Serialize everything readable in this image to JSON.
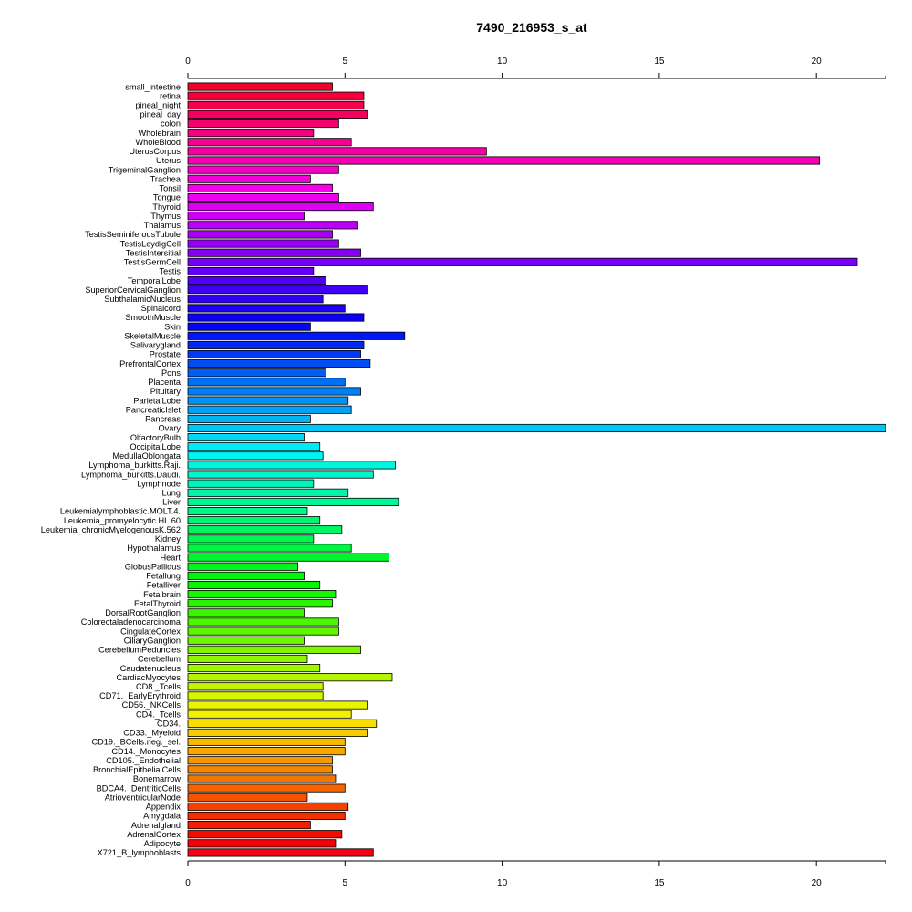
{
  "chart_data": {
    "type": "bar",
    "orientation": "horizontal",
    "title": "7490_216953_s_at",
    "xlabel": "",
    "ylabel": "",
    "xlim": [
      0,
      22.2
    ],
    "xticks": [
      0,
      5,
      10,
      15,
      20
    ],
    "grid": false,
    "legend": "none",
    "categories": [
      "small_intestine",
      "retina",
      "pineal_night",
      "pineal_day",
      "colon",
      "Wholebrain",
      "WholeBlood",
      "UterusCorpus",
      "Uterus",
      "TrigeminalGanglion",
      "Trachea",
      "Tonsil",
      "Tongue",
      "Thyroid",
      "Thymus",
      "Thalamus",
      "TestisSeminiferousTubule",
      "TestisLeydigCell",
      "TestisIntersitial",
      "TestisGermCell",
      "Testis",
      "TemporalLobe",
      "SuperiorCervicalGanglion",
      "SubthalamicNucleus",
      "Spinalcord",
      "SmoothMuscle",
      "Skin",
      "SkeletalMuscle",
      "Salivarygland",
      "Prostate",
      "PrefrontalCortex",
      "Pons",
      "Placenta",
      "Pituitary",
      "ParietalLobe",
      "PancreaticIslet",
      "Pancreas",
      "Ovary",
      "OlfactoryBulb",
      "OccipitalLobe",
      "MedullaOblongata",
      "Lymphoma_burkitts.Raji.",
      "Lymphoma_burkitts.Daudi.",
      "Lymphnode",
      "Lung",
      "Liver",
      "Leukemialymphoblastic.MOLT.4.",
      "Leukemia_promyelocytic.HL.60",
      "Leukemia_chronicMyelogenousK.562",
      "Kidney",
      "Hypothalamus",
      "Heart",
      "GlobusPallidus",
      "Fetallung",
      "Fetalliver",
      "Fetalbrain",
      "FetalThyroid",
      "DorsalRootGanglion",
      "Colorectaladenocarcinoma",
      "CingulateCortex",
      "CiliaryGanglion",
      "CerebellumPeduncles",
      "Cerebellum",
      "Caudatenucleus",
      "CardiacMyocytes",
      "CD8._Tcells",
      "CD71._EarlyErythroid",
      "CD56._NKCells",
      "CD4._Tcells",
      "CD34.",
      "CD33._Myeloid",
      "CD19._BCells.neg._sel.",
      "CD14._Monocytes",
      "CD105._Endothelial",
      "BronchialEpithelialCells",
      "Bonemarrow",
      "BDCA4._DentriticCells",
      "AtrioventricularNode",
      "Appendix",
      "Amygdala",
      "Adrenalgland",
      "AdrenalCortex",
      "Adipocyte",
      "X721_B_lymphoblasts"
    ],
    "values": [
      4.6,
      5.6,
      5.6,
      5.7,
      4.8,
      4.0,
      5.2,
      9.5,
      20.1,
      4.8,
      3.9,
      4.6,
      4.8,
      5.9,
      3.7,
      5.4,
      4.6,
      4.8,
      5.5,
      21.3,
      4.0,
      4.4,
      5.7,
      4.3,
      5.0,
      5.6,
      3.9,
      6.9,
      5.6,
      5.5,
      5.8,
      4.4,
      5.0,
      5.5,
      5.1,
      5.2,
      3.9,
      22.2,
      3.7,
      4.2,
      4.3,
      6.6,
      5.9,
      4.0,
      5.1,
      6.7,
      3.8,
      4.2,
      4.9,
      4.0,
      5.2,
      6.4,
      3.5,
      3.7,
      4.2,
      4.7,
      4.6,
      3.7,
      4.8,
      4.8,
      3.7,
      5.5,
      3.8,
      4.2,
      6.5,
      4.3,
      4.3,
      5.7,
      5.2,
      6.0,
      5.7,
      5.0,
      5.0,
      4.6,
      4.6,
      4.7,
      5.0,
      3.8,
      5.1,
      5.0,
      3.9,
      4.9,
      4.7,
      5.9
    ]
  }
}
